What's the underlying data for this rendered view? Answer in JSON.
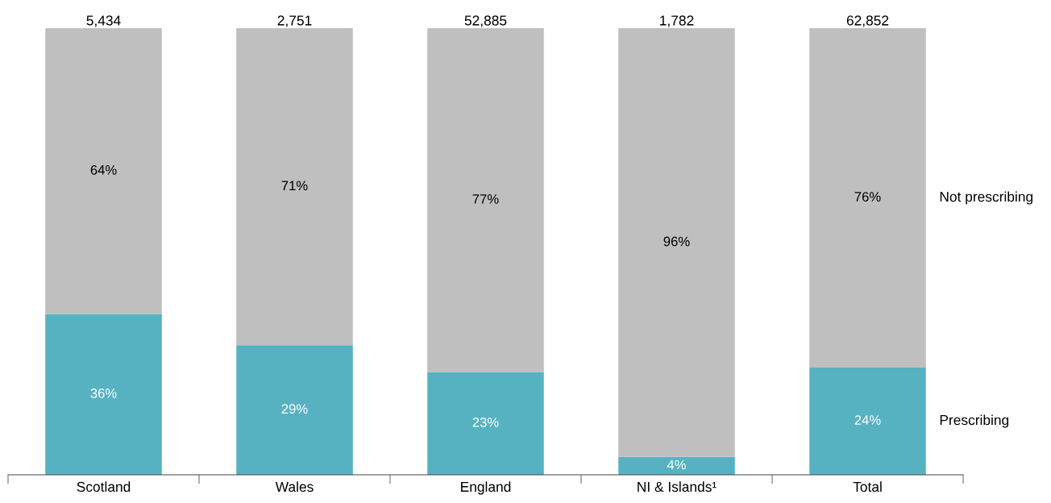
{
  "chart_data": {
    "type": "bar",
    "stacked": true,
    "categories": [
      "Scotland",
      "Wales",
      "England",
      "NI & Islands¹",
      "Total"
    ],
    "series": [
      {
        "name": "Prescribing",
        "color": "#56b2c1",
        "values": [
          36,
          29,
          23,
          4,
          24
        ],
        "value_labels": [
          "36%",
          "29%",
          "23%",
          "4%",
          "24%"
        ]
      },
      {
        "name": "Not prescribing",
        "color": "#bfbfbf",
        "values": [
          64,
          71,
          77,
          96,
          76
        ],
        "value_labels": [
          "64%",
          "71%",
          "77%",
          "96%",
          "76%"
        ]
      }
    ],
    "annotations": [
      {
        "text": "5,434",
        "x": "Scotland",
        "y": 100
      },
      {
        "text": "2,751",
        "x": "Wales",
        "y": 100
      },
      {
        "text": "52,885",
        "x": "England",
        "y": 100
      },
      {
        "text": "1,782",
        "x": "NI & Islands¹",
        "y": 100
      },
      {
        "text": "62,852",
        "x": "Total",
        "y": 100
      }
    ],
    "legend": false,
    "grid": false
  }
}
